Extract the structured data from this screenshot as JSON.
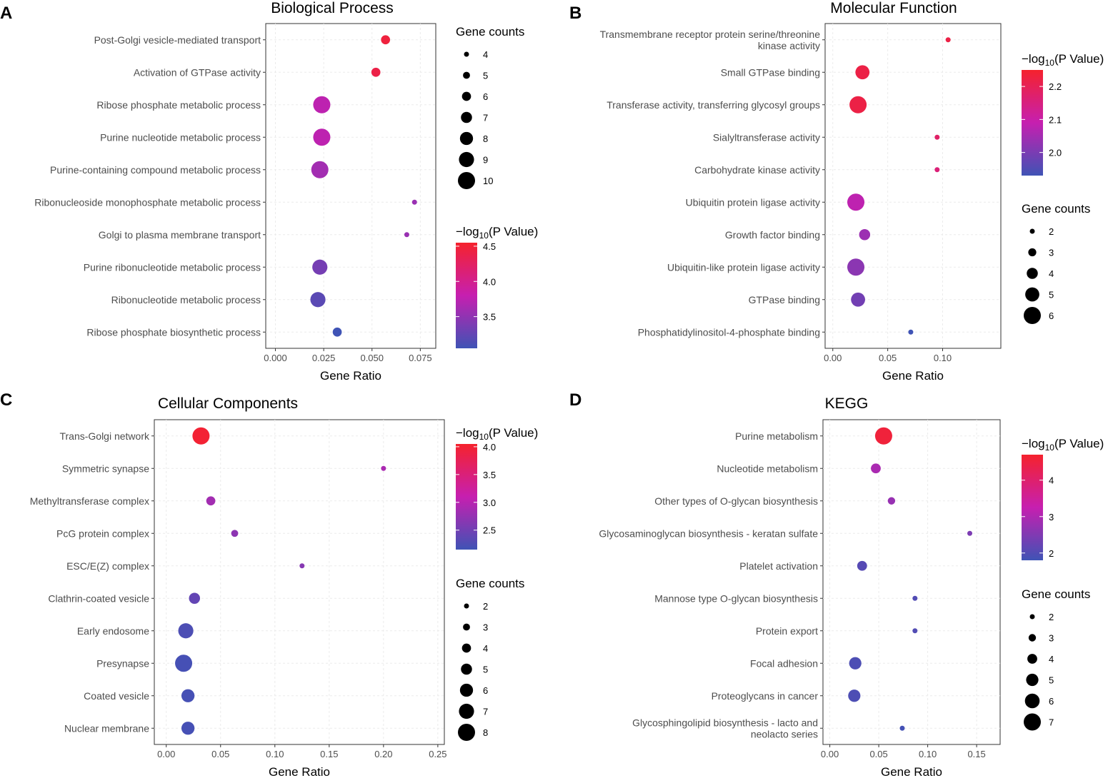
{
  "chart_data": [
    {
      "panel": "A",
      "type": "scatter",
      "title": "Biological Process",
      "xlabel": "Gene Ratio",
      "ylabel": "",
      "xlim": [
        -0.005,
        0.083
      ],
      "xticks": [
        0.0,
        0.025,
        0.05,
        0.075
      ],
      "xtick_labels": [
        "0.000",
        "0.025",
        "0.050",
        "0.075"
      ],
      "categories": [
        "Post-Golgi vesicle-mediated transport",
        "Activation of GTPase activity",
        "Ribose phosphate metabolic process",
        "Purine nucleotide metabolic process",
        "Purine-containing compound metabolic process",
        "Ribonucleoside monophosphate metabolic process",
        "Golgi to plasma membrane transport",
        "Purine ribonucleotide metabolic process",
        "Ribonucleotide metabolic process",
        "Ribose phosphate biosynthetic process"
      ],
      "gene_ratio": [
        0.057,
        0.052,
        0.024,
        0.024,
        0.023,
        0.072,
        0.068,
        0.023,
        0.022,
        0.032
      ],
      "gene_counts": [
        6,
        6,
        10,
        10,
        10,
        4,
        4,
        9,
        9,
        6
      ],
      "neg_log10_p": [
        4.45,
        4.4,
        3.75,
        3.75,
        3.6,
        3.55,
        3.55,
        3.35,
        3.2,
        3.05
      ],
      "size_legend": {
        "title": "Gene counts",
        "values": [
          4,
          5,
          6,
          7,
          8,
          9,
          10
        ],
        "labels": [
          "4",
          "5",
          "6",
          "7",
          "8",
          "9",
          "10"
        ]
      },
      "color_legend": {
        "title_prefix": "−log",
        "title_sub": "10",
        "title_suffix": "(P Value)",
        "min": 3.05,
        "max": 4.55,
        "ticks": [
          3.5,
          4.0,
          4.5
        ],
        "tick_labels": [
          "3.5",
          "4.0",
          "4.5"
        ]
      }
    },
    {
      "panel": "B",
      "type": "scatter",
      "title": "Molecular Function",
      "xlabel": "Gene Ratio",
      "ylabel": "",
      "xlim": [
        -0.007,
        0.153
      ],
      "xticks": [
        0.0,
        0.05,
        0.1
      ],
      "xtick_labels": [
        "0.00",
        "0.05",
        "0.10"
      ],
      "categories": [
        [
          "Transmembrane receptor protein serine/threonine",
          "kinase activity"
        ],
        "Small GTPase binding",
        "Transferase activity, transferring glycosyl groups",
        "Sialyltransferase activity",
        "Carbohydrate kinase activity",
        "Ubiquitin protein ligase activity",
        "Growth factor binding",
        "Ubiquitin-like protein ligase activity",
        "GTPase binding",
        "Phosphatidylinositol-4-phosphate binding"
      ],
      "gene_ratio": [
        0.105,
        0.027,
        0.023,
        0.095,
        0.095,
        0.021,
        0.029,
        0.021,
        0.023,
        0.071
      ],
      "gene_counts": [
        2,
        5,
        6,
        2,
        2,
        6,
        4,
        6,
        5,
        2
      ],
      "neg_log10_p": [
        2.22,
        2.22,
        2.22,
        2.18,
        2.16,
        2.08,
        2.04,
        2.02,
        1.99,
        1.93
      ],
      "size_legend": {
        "title": "Gene counts",
        "values": [
          2,
          3,
          4,
          5,
          6
        ],
        "labels": [
          "2",
          "3",
          "4",
          "5",
          "6"
        ]
      },
      "color_legend": {
        "title_prefix": "−log",
        "title_sub": "10",
        "title_suffix": "(P Value)",
        "min": 1.93,
        "max": 2.25,
        "ticks": [
          2.0,
          2.1,
          2.2
        ],
        "tick_labels": [
          "2.0",
          "2.1",
          "2.2"
        ]
      }
    },
    {
      "panel": "C",
      "type": "scatter",
      "title": "Cellular Components",
      "xlabel": "Gene Ratio",
      "ylabel": "",
      "xlim": [
        -0.011,
        0.256
      ],
      "xticks": [
        0.0,
        0.05,
        0.1,
        0.15,
        0.2,
        0.25
      ],
      "xtick_labels": [
        "0.00",
        "0.05",
        "0.10",
        "0.15",
        "0.20",
        "0.25"
      ],
      "categories": [
        "Trans-Golgi network",
        "Symmetric synapse",
        "Methyltransferase complex",
        "PcG protein complex",
        "ESC/E(Z) complex",
        "Clathrin-coated vesicle",
        "Early endosome",
        "Presynapse",
        "Coated vesicle",
        "Nuclear membrane"
      ],
      "gene_ratio": [
        0.032,
        0.2,
        0.041,
        0.063,
        0.125,
        0.026,
        0.018,
        0.016,
        0.02,
        0.02
      ],
      "gene_counts": [
        8,
        2,
        4,
        3,
        2,
        5,
        7,
        8,
        6,
        6
      ],
      "neg_log10_p": [
        4.0,
        2.9,
        2.85,
        2.7,
        2.65,
        2.4,
        2.25,
        2.2,
        2.2,
        2.2
      ],
      "size_legend": {
        "title": "Gene counts",
        "values": [
          2,
          3,
          4,
          5,
          6,
          7,
          8
        ],
        "labels": [
          "2",
          "3",
          "4",
          "5",
          "6",
          "7",
          "8"
        ]
      },
      "color_legend": {
        "title_prefix": "−log",
        "title_sub": "10",
        "title_suffix": "(P Value)",
        "min": 2.15,
        "max": 4.05,
        "ticks": [
          2.5,
          3.0,
          3.5,
          4.0
        ],
        "tick_labels": [
          "2.5",
          "3.0",
          "3.5",
          "4.0"
        ]
      }
    },
    {
      "panel": "D",
      "type": "scatter",
      "title": "KEGG",
      "xlabel": "Gene Ratio",
      "ylabel": "",
      "xlim": [
        -0.007,
        0.174
      ],
      "xticks": [
        0.0,
        0.05,
        0.1,
        0.15
      ],
      "xtick_labels": [
        "0.00",
        "0.05",
        "0.10",
        "0.15"
      ],
      "categories": [
        "Purine metabolism",
        "Nucleotide metabolism",
        "Other types of O-glycan biosynthesis",
        "Glycosaminoglycan biosynthesis - keratan sulfate",
        "Platelet activation",
        "Mannose type O-glycan biosynthesis",
        "Protein export",
        "Focal adhesion",
        "Proteoglycans in cancer",
        [
          "Glycosphingolipid biosynthesis - lacto and",
          "neolacto series"
        ]
      ],
      "gene_ratio": [
        0.055,
        0.047,
        0.063,
        0.143,
        0.033,
        0.087,
        0.087,
        0.026,
        0.025,
        0.074
      ],
      "gene_counts": [
        7,
        4,
        3,
        2,
        4,
        2,
        2,
        5,
        5,
        2
      ],
      "neg_log10_p": [
        4.55,
        2.95,
        2.75,
        2.45,
        2.05,
        2.0,
        2.0,
        1.95,
        1.95,
        1.85
      ],
      "size_legend": {
        "title": "Gene counts",
        "values": [
          2,
          3,
          4,
          5,
          6,
          7
        ],
        "labels": [
          "2",
          "3",
          "4",
          "5",
          "6",
          "7"
        ]
      },
      "color_legend": {
        "title_prefix": "−log",
        "title_sub": "10",
        "title_suffix": "(P Value)",
        "min": 1.8,
        "max": 4.7,
        "ticks": [
          2,
          3,
          4
        ],
        "tick_labels": [
          "2",
          "3",
          "4"
        ]
      }
    }
  ],
  "colors": {
    "low": "#3f53b5",
    "mid": "#c61fb0",
    "high": "#f5222d"
  }
}
